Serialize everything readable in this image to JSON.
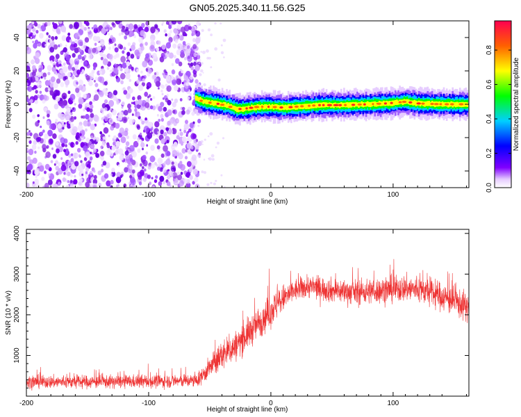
{
  "title": "GN05.2025.340.11.56.G25",
  "chart_data": [
    {
      "type": "heatmap",
      "xlabel": "Height of straight line (km)",
      "ylabel": "Frequency (Hz)",
      "xlim": [
        -200,
        162
      ],
      "ylim": [
        -50,
        50
      ],
      "x_ticks": [
        -200,
        -100,
        0,
        100
      ],
      "y_ticks": [
        -40,
        -20,
        0,
        20,
        40
      ],
      "ridge": {
        "start_km": -62,
        "end_km": 160,
        "points": [
          [
            -62,
            3.5
          ],
          [
            -55,
            1.5
          ],
          [
            -45,
            0.5
          ],
          [
            -35,
            -1
          ],
          [
            -28,
            -3
          ],
          [
            -20,
            -2.5
          ],
          [
            -10,
            -1.5
          ],
          [
            0,
            -1.5
          ],
          [
            10,
            -2
          ],
          [
            20,
            -1.5
          ],
          [
            40,
            -0.5
          ],
          [
            60,
            -0.5
          ],
          [
            80,
            0
          ],
          [
            95,
            0.5
          ],
          [
            110,
            1.5
          ],
          [
            120,
            0.5
          ],
          [
            140,
            0
          ],
          [
            160,
            0
          ]
        ]
      },
      "noise_region_km": [
        -200,
        -62
      ]
    },
    {
      "type": "line",
      "xlabel": "Height of straight line (km)",
      "ylabel": "SNR (10 * v/v)",
      "xlim": [
        -200,
        162
      ],
      "ylim": [
        0,
        4100
      ],
      "x_ticks": [
        -200,
        -100,
        0,
        100
      ],
      "y_ticks": [
        1000,
        2000,
        3000,
        4000
      ],
      "color": "#ee3333",
      "envelope": [
        [
          -200,
          350
        ],
        [
          -150,
          350
        ],
        [
          -100,
          360
        ],
        [
          -60,
          380
        ],
        [
          -50,
          700
        ],
        [
          -40,
          1000
        ],
        [
          -30,
          1200
        ],
        [
          -20,
          1500
        ],
        [
          -10,
          1800
        ],
        [
          0,
          2100
        ],
        [
          10,
          2400
        ],
        [
          20,
          2600
        ],
        [
          30,
          2700
        ],
        [
          50,
          2600
        ],
        [
          70,
          2550
        ],
        [
          90,
          2600
        ],
        [
          110,
          2650
        ],
        [
          125,
          2600
        ],
        [
          140,
          2450
        ],
        [
          160,
          2200
        ]
      ],
      "spread": [
        [
          -200,
          200
        ],
        [
          -60,
          200
        ],
        [
          -40,
          450
        ],
        [
          0,
          500
        ],
        [
          20,
          350
        ],
        [
          160,
          450
        ]
      ]
    },
    {
      "type": "colorbar",
      "label": "Normalized spectral amplitude",
      "range": [
        0,
        0.97
      ],
      "ticks": [
        0.0,
        0.2,
        0.4,
        0.6,
        0.8
      ]
    }
  ]
}
